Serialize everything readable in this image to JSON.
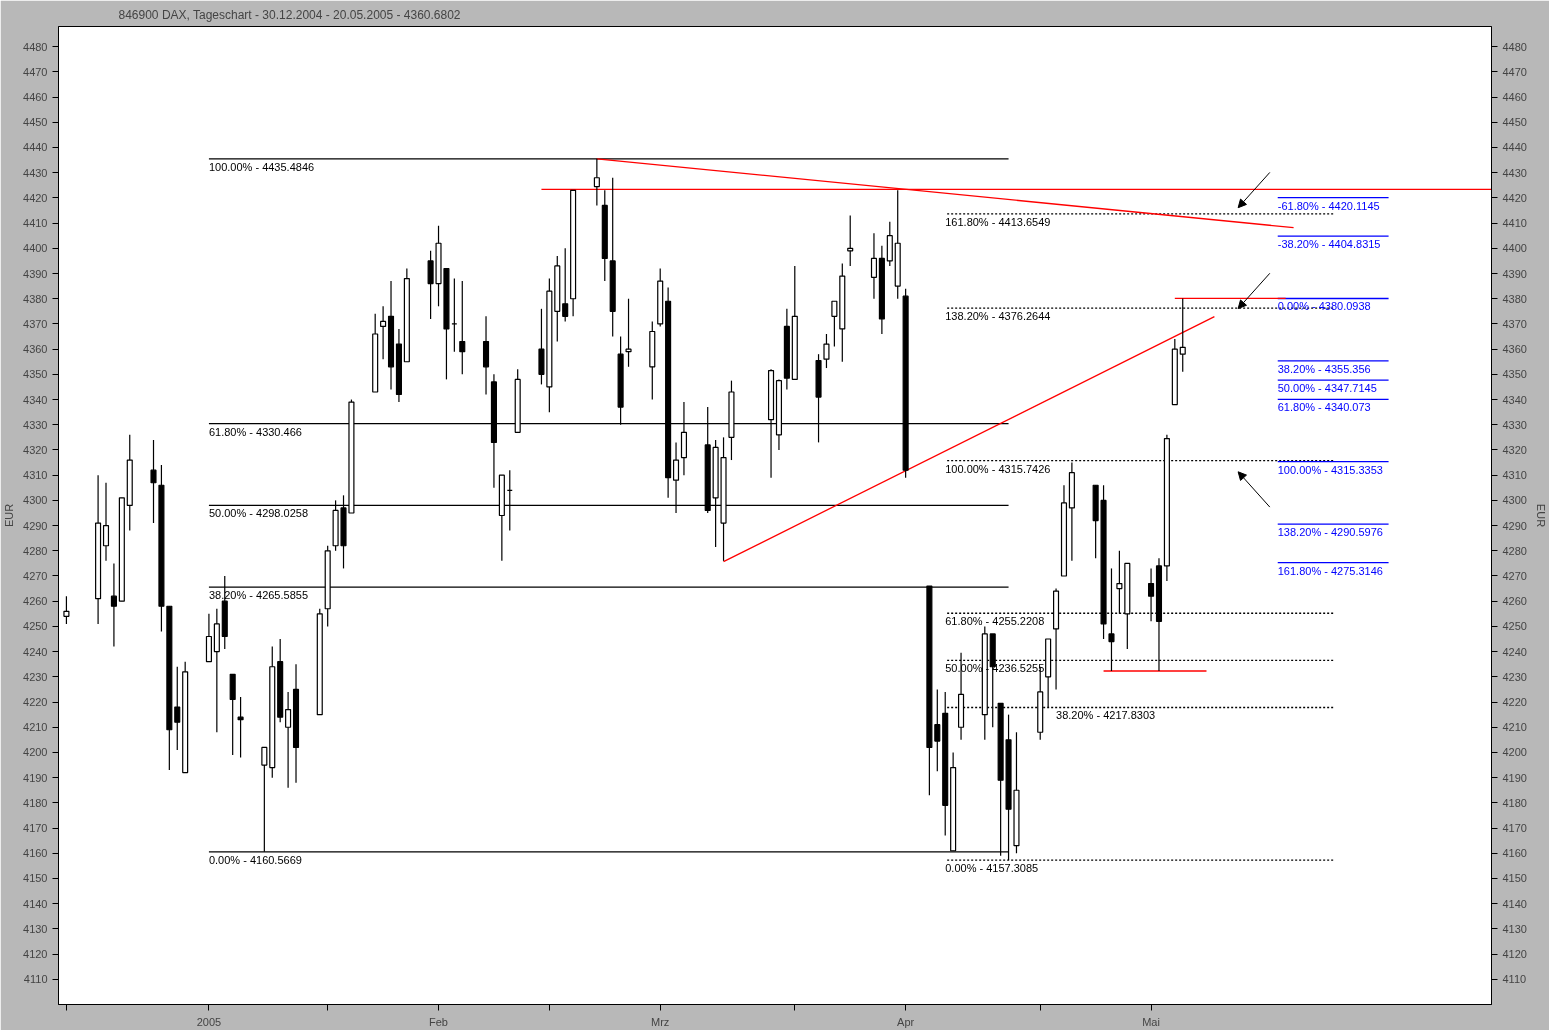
{
  "chart_data": {
    "type": "candlestick",
    "title": "846900  DAX, Tageschart - 30.12.2004 - 20.05.2005 - 4360.6802",
    "ylabel": "EUR",
    "y2label": "EUR",
    "x": [
      "2004-12-30",
      "2005-01-03",
      "2005-01-04",
      "2005-01-05",
      "2005-01-06",
      "2005-01-07",
      "2005-01-10",
      "2005-01-11",
      "2005-01-12",
      "2005-01-13",
      "2005-01-14",
      "2005-01-17",
      "2005-01-18",
      "2005-01-19",
      "2005-01-20",
      "2005-01-21",
      "2005-01-24",
      "2005-01-25",
      "2005-01-26",
      "2005-01-27",
      "2005-01-28",
      "2005-01-31",
      "2005-02-01",
      "2005-02-02",
      "2005-02-03",
      "2005-02-04",
      "2005-02-07",
      "2005-02-08",
      "2005-02-09",
      "2005-02-10",
      "2005-02-11",
      "2005-02-14",
      "2005-02-15",
      "2005-02-16",
      "2005-02-17",
      "2005-02-18",
      "2005-02-21",
      "2005-02-22",
      "2005-02-23",
      "2005-02-24",
      "2005-02-25",
      "2005-02-28",
      "2005-03-01",
      "2005-03-02",
      "2005-03-03",
      "2005-03-04",
      "2005-03-07",
      "2005-03-08",
      "2005-03-09",
      "2005-03-10",
      "2005-03-11",
      "2005-03-14",
      "2005-03-15",
      "2005-03-16",
      "2005-03-17",
      "2005-03-18",
      "2005-03-21",
      "2005-03-22",
      "2005-03-23",
      "2005-03-24",
      "2005-03-29",
      "2005-03-30",
      "2005-03-31",
      "2005-04-01",
      "2005-04-04",
      "2005-04-05",
      "2005-04-06",
      "2005-04-07",
      "2005-04-08",
      "2005-04-11",
      "2005-04-12",
      "2005-04-13",
      "2005-04-14",
      "2005-04-15",
      "2005-04-18",
      "2005-04-19",
      "2005-04-20",
      "2005-04-21",
      "2005-04-22",
      "2005-04-25",
      "2005-04-26",
      "2005-04-27",
      "2005-04-28",
      "2005-04-29",
      "2005-05-02",
      "2005-05-03",
      "2005-05-04",
      "2005-05-05",
      "2005-05-06",
      "2005-05-09",
      "2005-05-10",
      "2005-05-11",
      "2005-05-12",
      "2005-05-13",
      "2005-05-16",
      "2005-05-17",
      "2005-05-18",
      "2005-05-19",
      "2005-05-20"
    ],
    "ohlc": [
      [
        4254,
        4262,
        4251,
        4256
      ],
      [
        4261,
        4310,
        4251,
        4291
      ],
      [
        4282,
        4307,
        4276,
        4290
      ],
      [
        4262,
        4275,
        4242,
        4258
      ],
      [
        4260,
        4301,
        4260,
        4301
      ],
      [
        4298,
        4326,
        4288,
        4316
      ],
      [
        4312,
        4324,
        4291,
        4307
      ],
      [
        4306,
        4314,
        4248,
        4258
      ],
      [
        4258,
        4258,
        4193,
        4209
      ],
      [
        4218,
        4234,
        4201,
        4212
      ],
      [
        4192,
        4236,
        4192,
        4232
      ],
      [
        4236,
        4255,
        4236,
        4246
      ],
      [
        4240,
        4257,
        4208,
        4251
      ],
      [
        4260,
        4270,
        4241,
        4246
      ],
      [
        4231,
        4231,
        4199,
        4221
      ],
      [
        4214,
        4222,
        4198,
        4213
      ],
      [
        4195,
        4202,
        4160.6,
        4202
      ],
      [
        4194,
        4242,
        4190,
        4234
      ],
      [
        4236,
        4245,
        4212,
        4214
      ],
      [
        4210,
        4224,
        4186,
        4217
      ],
      [
        4225,
        4235,
        4188,
        4202
      ],
      [
        4215,
        4257,
        4215,
        4255
      ],
      [
        4257,
        4282,
        4250,
        4280
      ],
      [
        4282,
        4300,
        4280,
        4296
      ],
      [
        4297,
        4302,
        4273,
        4282
      ],
      [
        4295,
        4340,
        4295,
        4339
      ],
      [
        4343,
        4374,
        4343,
        4366
      ],
      [
        4369,
        4377,
        4356,
        4371
      ],
      [
        4373,
        4387,
        4344,
        4353
      ],
      [
        4362,
        4368,
        4339,
        4342
      ],
      [
        4355,
        4392,
        4355,
        4388
      ],
      [
        4395,
        4399,
        4372,
        4386
      ],
      [
        4386,
        4409,
        4377,
        4402
      ],
      [
        4392,
        4392,
        4348,
        4368
      ],
      [
        4370,
        4388,
        4359,
        4370
      ],
      [
        4363,
        4387,
        4350,
        4359
      ],
      [
        4363,
        4373,
        4342,
        4353
      ],
      [
        4347,
        4350,
        4305,
        4323
      ],
      [
        4294,
        4310,
        4276,
        4310
      ],
      [
        4304,
        4312,
        4288,
        4304
      ],
      [
        4327,
        4352,
        4327,
        4348
      ],
      [
        4360,
        4376,
        4346,
        4350
      ],
      [
        4345,
        4388,
        4335,
        4383
      ],
      [
        4375,
        4397,
        4363,
        4393
      ],
      [
        4378,
        4400,
        4371,
        4373
      ],
      [
        4380,
        4423,
        4373,
        4423
      ],
      [
        4424.5,
        4435.5,
        4417,
        4428
      ],
      [
        4417,
        4423,
        4387,
        4396
      ],
      [
        4395,
        4428,
        4365,
        4375
      ],
      [
        4358,
        4365,
        4330,
        4337
      ],
      [
        4359,
        4380,
        4353,
        4360
      ],
      [
        4353,
        4371,
        4340,
        4367
      ],
      [
        4370,
        4392,
        4369,
        4387
      ],
      [
        4379,
        4384.5,
        4301,
        4309
      ],
      [
        4308,
        4323,
        4295,
        4316
      ],
      [
        4317,
        4339,
        4310,
        4327
      ],
      [
        4322,
        4337,
        4295,
        4296
      ],
      [
        4301,
        4324,
        4281.5,
        4321
      ],
      [
        4291,
        4325,
        4276,
        4317
      ],
      [
        4325,
        4347.5,
        4316,
        4343
      ],
      [
        4332,
        4352,
        4309,
        4351.5
      ],
      [
        4326,
        4348,
        4320,
        4347.5
      ],
      [
        4369,
        4376,
        4344,
        4348.5
      ],
      [
        4348,
        4393,
        4348,
        4373
      ],
      [
        4355.5,
        4358,
        4323,
        4341
      ],
      [
        4356,
        4366,
        4352.5,
        4362
      ],
      [
        4373,
        4379,
        4361,
        4379
      ],
      [
        4368,
        4394,
        4355,
        4389
      ],
      [
        4399,
        4413,
        4393,
        4400
      ],
      [
        4388.5,
        4406,
        4380,
        4396
      ],
      [
        4396,
        4401,
        4366,
        4372
      ],
      [
        4395,
        4410.5,
        4393,
        4405
      ],
      [
        4385,
        4423,
        4380,
        4402
      ],
      [
        4381,
        4384,
        4309,
        4312
      ],
      [
        4266,
        4266,
        4183,
        4202
      ],
      [
        4211,
        4225,
        4192.5,
        4204.5
      ],
      [
        4215.5,
        4224,
        4167,
        4179
      ],
      [
        4161,
        4200,
        4161,
        4194
      ],
      [
        4210,
        4239.5,
        4205,
        4223
      ],
      [
        4215,
        4250,
        4205,
        4247
      ],
      [
        4247,
        4247,
        4210,
        4234
      ],
      [
        4219.5,
        4219.5,
        4159,
        4189
      ],
      [
        4205,
        4215,
        4157.3,
        4177.5
      ],
      [
        4163,
        4208,
        4160,
        4185
      ],
      [
        4208,
        4234,
        4205,
        4224
      ],
      [
        4230,
        4245,
        4218,
        4245
      ],
      [
        4249,
        4265,
        4225,
        4264
      ],
      [
        4270,
        4306,
        4270,
        4299
      ],
      [
        4297,
        4315,
        4276,
        4311
      ],
      [
        4306,
        4306,
        4277,
        4292
      ],
      [
        4300,
        4306,
        4245,
        4251
      ],
      [
        4247,
        4273,
        4232.3,
        4244
      ],
      [
        4265,
        4280,
        4255,
        4267
      ],
      [
        4255,
        4275,
        4241,
        4275
      ],
      [
        4267,
        4273,
        4252,
        4262
      ],
      [
        4274,
        4277,
        4232.3,
        4252
      ],
      [
        4274,
        4326,
        4268,
        4324.5
      ],
      [
        4338,
        4364,
        4338,
        4360
      ],
      [
        4358,
        4380.1,
        4351,
        4360.7
      ]
    ],
    "series": [
      {
        "type": "line",
        "color": "#000000",
        "line_style": "solid",
        "x": [
          "2005-01-17",
          "2005-04-28"
        ],
        "values": [
          4435.4846,
          4435.4846
        ]
      },
      {
        "type": "line",
        "color": "#000000",
        "line_style": "solid",
        "x": [
          "2005-01-17",
          "2005-04-28"
        ],
        "values": [
          4330.466,
          4330.466
        ]
      },
      {
        "type": "line",
        "color": "#000000",
        "line_style": "solid",
        "x": [
          "2005-01-17",
          "2005-04-28"
        ],
        "values": [
          4298.0258,
          4298.0258
        ]
      },
      {
        "type": "line",
        "color": "#000000",
        "line_style": "solid",
        "x": [
          "2005-01-17",
          "2005-04-28"
        ],
        "values": [
          4265.5855,
          4265.5855
        ]
      },
      {
        "type": "line",
        "color": "#000000",
        "line_style": "solid",
        "x": [
          "2005-01-17",
          "2005-04-28"
        ],
        "values": [
          4160.5669,
          4160.5669
        ]
      },
      {
        "type": "line",
        "color": "#000000",
        "line_style": "dashed",
        "x": [
          "2005-04-20",
          "2005-06-08"
        ],
        "values": [
          4413.6549,
          4413.6549
        ]
      },
      {
        "type": "line",
        "color": "#000000",
        "line_style": "dashed",
        "x": [
          "2005-04-20",
          "2005-06-08"
        ],
        "values": [
          4376.2644,
          4376.2644
        ]
      },
      {
        "type": "line",
        "color": "#000000",
        "line_style": "dashed",
        "x": [
          "2005-04-20",
          "2005-06-08"
        ],
        "values": [
          4315.7426,
          4315.7426
        ]
      },
      {
        "type": "line",
        "color": "#000000",
        "line_style": "dashed",
        "x": [
          "2005-04-20",
          "2005-06-08"
        ],
        "values": [
          4255.2208,
          4255.2208
        ]
      },
      {
        "type": "line",
        "color": "#000000",
        "line_style": "dashed",
        "x": [
          "2005-04-20",
          "2005-06-08"
        ],
        "values": [
          4236.5255,
          4236.5255
        ]
      },
      {
        "type": "line",
        "color": "#000000",
        "line_style": "dashed",
        "x": [
          "2005-04-20",
          "2005-06-08"
        ],
        "values": [
          4217.8303,
          4217.8303
        ]
      },
      {
        "type": "line",
        "color": "#000000",
        "line_style": "dashed",
        "x": [
          "2005-04-20",
          "2005-06-08"
        ],
        "values": [
          4157.3085,
          4157.3085
        ]
      },
      {
        "type": "line",
        "color": "#0000ff",
        "line_style": "solid",
        "x": [
          "2005-06-01",
          "2005-06-15"
        ],
        "values": [
          4420.1145,
          4420.1145
        ]
      },
      {
        "type": "line",
        "color": "#0000ff",
        "line_style": "solid",
        "x": [
          "2005-06-01",
          "2005-06-15"
        ],
        "values": [
          4404.8315,
          4404.8315
        ]
      },
      {
        "type": "line",
        "color": "#0000ff",
        "line_style": "solid",
        "x": [
          "2005-06-01",
          "2005-06-15"
        ],
        "values": [
          4380.0938,
          4380.0938
        ]
      },
      {
        "type": "line",
        "color": "#0000ff",
        "line_style": "solid",
        "x": [
          "2005-06-01",
          "2005-06-15"
        ],
        "values": [
          4355.356,
          4355.356
        ]
      },
      {
        "type": "line",
        "color": "#0000ff",
        "line_style": "solid",
        "x": [
          "2005-06-01",
          "2005-06-15"
        ],
        "values": [
          4347.7145,
          4347.7145
        ]
      },
      {
        "type": "line",
        "color": "#0000ff",
        "line_style": "solid",
        "x": [
          "2005-06-01",
          "2005-06-15"
        ],
        "values": [
          4340.073,
          4340.073
        ]
      },
      {
        "type": "line",
        "color": "#0000ff",
        "line_style": "solid",
        "x": [
          "2005-06-01",
          "2005-06-15"
        ],
        "values": [
          4315.3353,
          4315.3353
        ]
      },
      {
        "type": "line",
        "color": "#0000ff",
        "line_style": "solid",
        "x": [
          "2005-06-01",
          "2005-06-15"
        ],
        "values": [
          4290.5976,
          4290.5976
        ]
      },
      {
        "type": "line",
        "color": "#0000ff",
        "line_style": "solid",
        "x": [
          "2005-06-01",
          "2005-06-15"
        ],
        "values": [
          4275.3146,
          4275.3146
        ]
      },
      {
        "type": "line",
        "color": "#ff0000",
        "line_style": "solid",
        "x": [
          "2005-02-28",
          "2005-06-28"
        ],
        "values": [
          4423.4,
          4423.4
        ]
      },
      {
        "type": "line",
        "color": "#ff0000",
        "line_style": "solid",
        "x": [
          "2005-05-19",
          "2005-06-02"
        ],
        "values": [
          4380.1,
          4380.1
        ]
      },
      {
        "type": "line",
        "color": "#ff0000",
        "line_style": "solid",
        "x": [
          "2005-05-10",
          "2005-05-23"
        ],
        "values": [
          4232.3,
          4232.3
        ]
      },
      {
        "type": "line",
        "color": "#ff0000",
        "line_style": "solid",
        "x": [
          "2005-03-07",
          "2005-06-03"
        ],
        "values": [
          4435.5,
          4408.2
        ]
      },
      {
        "type": "line",
        "color": "#ff0000",
        "line_style": "solid",
        "x": [
          "2005-03-23",
          "2005-05-24"
        ],
        "values": [
          4275.7,
          4372.9
        ]
      }
    ],
    "annotations": [
      {
        "text": "100.00% - 4435.4846",
        "x": "2005-01-17",
        "y": 4435.4846
      },
      {
        "text": "61.80% - 4330.466",
        "x": "2005-01-17",
        "y": 4330.466
      },
      {
        "text": "50.00% - 4298.0258",
        "x": "2005-01-17",
        "y": 4298.0258
      },
      {
        "text": "38.20% - 4265.5855",
        "x": "2005-01-17",
        "y": 4265.5855
      },
      {
        "text": "0.00% - 4160.5669",
        "x": "2005-01-17",
        "y": 4160.5669
      },
      {
        "text": "161.80% - 4413.6549",
        "x": "2005-04-20",
        "y": 4413.6549
      },
      {
        "text": "138.20% - 4376.2644",
        "x": "2005-04-20",
        "y": 4376.2644
      },
      {
        "text": "100.00% - 4315.7426",
        "x": "2005-04-20",
        "y": 4315.7426
      },
      {
        "text": "61.80% - 4255.2208",
        "x": "2005-04-20",
        "y": 4255.2208
      },
      {
        "text": "50.00% - 4236.5255",
        "x": "2005-04-20",
        "y": 4236.5255
      },
      {
        "text": "38.20% - 4217.8303",
        "x": "2005-05-04",
        "y": 4217.8303
      },
      {
        "text": "0.00% - 4157.3085",
        "x": "2005-04-20",
        "y": 4157.3085
      },
      {
        "text": "-61.80% - 4420.1145",
        "x": "2005-06-01",
        "y": 4420.1145
      },
      {
        "text": "-38.20% - 4404.8315",
        "x": "2005-06-01",
        "y": 4404.8315
      },
      {
        "text": "0.00% - 4380.0938",
        "x": "2005-06-01",
        "y": 4380.0938
      },
      {
        "text": "38.20% - 4355.356",
        "x": "2005-06-01",
        "y": 4355.356
      },
      {
        "text": "50.00% - 4347.7145",
        "x": "2005-06-01",
        "y": 4347.7145
      },
      {
        "text": "61.80% - 4340.073",
        "x": "2005-06-01",
        "y": 4340.073
      },
      {
        "text": "100.00% - 4315.3353",
        "x": "2005-06-01",
        "y": 4315.3353
      },
      {
        "text": "138.20% - 4290.5976",
        "x": "2005-06-01",
        "y": 4290.5976
      },
      {
        "text": "161.80% - 4275.3146",
        "x": "2005-06-01",
        "y": 4275.3146
      }
    ],
    "xlim": [
      "2004-12-29",
      "2005-06-28"
    ],
    "xticks": [
      {
        "value": "2004-12-30",
        "label": null
      },
      {
        "value": "2005-01-17",
        "label": "2005"
      },
      {
        "value": "2005-02-01",
        "label": null
      },
      {
        "value": "2005-02-15",
        "label": "Feb"
      },
      {
        "value": "2005-03-01",
        "label": null
      },
      {
        "value": "2005-03-15",
        "label": "Mrz"
      },
      {
        "value": "2005-04-01",
        "label": null
      },
      {
        "value": "2005-04-15",
        "label": "Apr"
      },
      {
        "value": "2005-05-02",
        "label": null
      },
      {
        "value": "2005-05-16",
        "label": "Mai"
      }
    ],
    "ylim": [
      4100,
      4488
    ],
    "yticks": [
      4110,
      4120,
      4130,
      4140,
      4150,
      4160,
      4170,
      4180,
      4190,
      4200,
      4210,
      4220,
      4230,
      4240,
      4250,
      4260,
      4270,
      4280,
      4290,
      4300,
      4310,
      4320,
      4330,
      4340,
      4350,
      4360,
      4370,
      4380,
      4390,
      4400,
      4410,
      4420,
      4430,
      4440,
      4450,
      4460,
      4470,
      4480
    ],
    "y2lim": [
      4100,
      4488
    ],
    "y2ticks": [
      4110,
      4120,
      4130,
      4140,
      4150,
      4160,
      4170,
      4180,
      4190,
      4200,
      4210,
      4220,
      4230,
      4240,
      4250,
      4260,
      4270,
      4280,
      4290,
      4300,
      4310,
      4320,
      4330,
      4340,
      4350,
      4360,
      4370,
      4380,
      4390,
      4400,
      4410,
      4420,
      4430,
      4440,
      4450,
      4460,
      4470,
      4480
    ]
  }
}
